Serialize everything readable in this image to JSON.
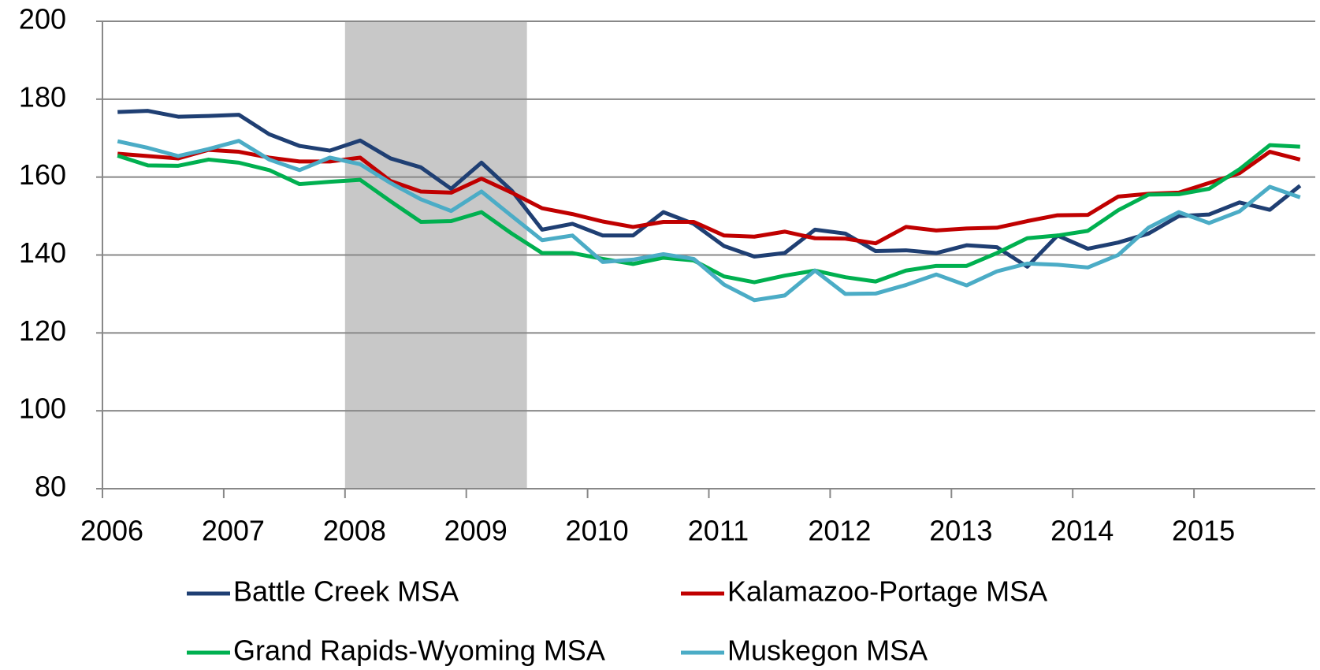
{
  "chart_data": {
    "type": "line",
    "x": [
      2006.125,
      2006.375,
      2006.625,
      2006.875,
      2007.125,
      2007.375,
      2007.625,
      2007.875,
      2008.125,
      2008.375,
      2008.625,
      2008.875,
      2009.125,
      2009.375,
      2009.625,
      2009.875,
      2010.125,
      2010.375,
      2010.625,
      2010.875,
      2011.125,
      2011.375,
      2011.625,
      2011.875,
      2012.125,
      2012.375,
      2012.625,
      2012.875,
      2013.125,
      2013.375,
      2013.625,
      2013.875,
      2014.125,
      2014.375,
      2014.625,
      2014.875,
      2015.125,
      2015.375,
      2015.625,
      2015.875
    ],
    "series": [
      {
        "name": "Battle Creek MSA",
        "color": "#1f3f73",
        "values": [
          176.7,
          177,
          175.5,
          175.7,
          176,
          171,
          168,
          166.8,
          169.4,
          164.8,
          162.5,
          157,
          163.7,
          156.5,
          146.5,
          148,
          145,
          145,
          151,
          148,
          142.3,
          139.6,
          140.5,
          146.5,
          145.5,
          141,
          141.2,
          140.5,
          142.5,
          142,
          137,
          145,
          141.6,
          143.2,
          145.5,
          150,
          150.4,
          153.5,
          151.6,
          157.8
        ]
      },
      {
        "name": "Kalamazoo-Portage MSA",
        "color": "#c00000",
        "values": [
          166,
          165.4,
          164.8,
          167,
          166.5,
          165,
          164,
          164,
          165,
          159,
          156.3,
          156,
          159.6,
          156,
          152,
          150.5,
          148.6,
          147.2,
          148.5,
          148.5,
          145,
          144.7,
          146,
          144.3,
          144.2,
          143,
          147.2,
          146.3,
          146.8,
          147,
          148.7,
          150.2,
          150.3,
          155,
          155.7,
          156,
          158.5,
          161,
          166.5,
          164.5
        ]
      },
      {
        "name": "Grand Rapids-Wyoming MSA",
        "color": "#00b050",
        "values": [
          165.5,
          163,
          162.9,
          164.5,
          163.7,
          161.8,
          158.2,
          158.8,
          159.3,
          153.8,
          148.5,
          148.7,
          151,
          145.5,
          140.5,
          140.5,
          139,
          137.7,
          139.3,
          138.6,
          134.5,
          133,
          134.7,
          136,
          134.3,
          133.2,
          136,
          137.2,
          137.2,
          140.5,
          144.3,
          145,
          146.2,
          151.5,
          155.5,
          155.6,
          157,
          162,
          168.2,
          167.8
        ]
      },
      {
        "name": "Muskegon MSA",
        "color": "#4bacc6",
        "values": [
          169.2,
          167.5,
          165.4,
          167.2,
          169.3,
          164.5,
          161.8,
          165,
          163.3,
          158.5,
          154.3,
          151.3,
          156.3,
          150,
          143.8,
          145,
          138.2,
          138.8,
          140.2,
          139,
          132.4,
          128.4,
          129.6,
          136,
          130,
          130.1,
          132.3,
          135,
          132.2,
          135.8,
          137.8,
          137.5,
          136.8,
          140,
          147,
          151,
          148.2,
          151.2,
          157.5,
          154.8
        ]
      }
    ],
    "xlim": [
      2006,
      2016
    ],
    "xticks": [
      2006,
      2007,
      2008,
      2009,
      2010,
      2011,
      2012,
      2013,
      2014,
      2015
    ],
    "ylim": [
      80,
      200
    ],
    "yticks": [
      80,
      100,
      120,
      140,
      160,
      180,
      200
    ],
    "grid": true,
    "recession": [
      2008,
      2009.5
    ],
    "recession_color": "#c8c8c8",
    "legend": "bottom"
  }
}
